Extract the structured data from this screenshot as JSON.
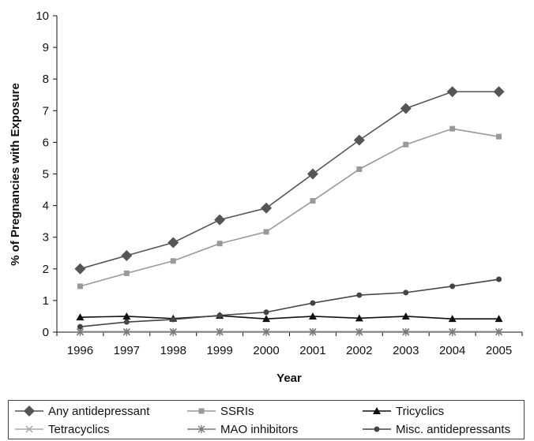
{
  "chart_data": {
    "type": "line",
    "title": "",
    "xlabel": "Year",
    "ylabel": "% of Pregnancies with Exposure",
    "categories": [
      "1996",
      "1997",
      "1998",
      "1999",
      "2000",
      "2001",
      "2002",
      "2003",
      "2004",
      "2005"
    ],
    "ylim": [
      0,
      10
    ],
    "yticks": [
      "0",
      "1",
      "2",
      "3",
      "4",
      "5",
      "6",
      "7",
      "8",
      "9",
      "10"
    ],
    "grid": false,
    "legend_position": "bottom",
    "series": [
      {
        "name": "Any antidepressant",
        "marker": "diamond",
        "color": "#555555",
        "values": [
          2.0,
          2.42,
          2.83,
          3.55,
          3.92,
          5.0,
          6.07,
          7.07,
          7.6,
          7.6
        ]
      },
      {
        "name": "SSRIs",
        "marker": "square",
        "color": "#999999",
        "values": [
          1.45,
          1.86,
          2.25,
          2.8,
          3.17,
          4.15,
          5.15,
          5.93,
          6.43,
          6.18
        ]
      },
      {
        "name": "Tricyclics",
        "marker": "triangle",
        "color": "#111111",
        "values": [
          0.47,
          0.5,
          0.43,
          0.52,
          0.42,
          0.5,
          0.44,
          0.5,
          0.42,
          0.42
        ]
      },
      {
        "name": "Tetracyclics",
        "marker": "x",
        "color": "#aaaaaa",
        "values": [
          0.02,
          0.02,
          0.02,
          0.02,
          0.02,
          0.02,
          0.02,
          0.02,
          0.02,
          0.02
        ]
      },
      {
        "name": "MAO inhibitors",
        "marker": "star",
        "color": "#777777",
        "values": [
          0.0,
          0.0,
          0.0,
          0.0,
          0.0,
          0.0,
          0.0,
          0.0,
          0.0,
          0.0
        ]
      },
      {
        "name": "Misc. antidepressants",
        "marker": "circle",
        "color": "#444444",
        "values": [
          0.17,
          0.32,
          0.4,
          0.53,
          0.63,
          0.92,
          1.17,
          1.25,
          1.45,
          1.67
        ]
      }
    ]
  }
}
